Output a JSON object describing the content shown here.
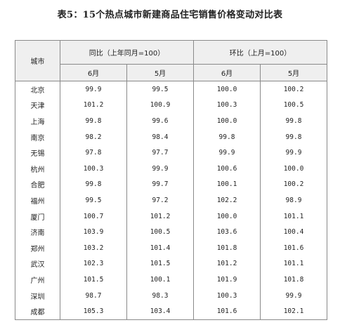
{
  "title": "表5：15个热点城市新建商品住宅销售价格变动对比表",
  "headers": {
    "city": "城市",
    "yoy": "同比（上年同月=100）",
    "mom": "环比（上月=100）",
    "month_a": "6月",
    "month_b": "5月"
  },
  "rows": [
    {
      "city": "北京",
      "yoy6": "99.9",
      "yoy5": "99.5",
      "mom6": "100.0",
      "mom5": "100.2"
    },
    {
      "city": "天津",
      "yoy6": "101.2",
      "yoy5": "100.9",
      "mom6": "100.3",
      "mom5": "100.5"
    },
    {
      "city": "上海",
      "yoy6": "99.8",
      "yoy5": "99.6",
      "mom6": "100.0",
      "mom5": "99.8"
    },
    {
      "city": "南京",
      "yoy6": "98.2",
      "yoy5": "98.4",
      "mom6": "99.8",
      "mom5": "99.8"
    },
    {
      "city": "无锡",
      "yoy6": "97.8",
      "yoy5": "97.7",
      "mom6": "99.9",
      "mom5": "99.9"
    },
    {
      "city": "杭州",
      "yoy6": "100.3",
      "yoy5": "99.9",
      "mom6": "100.6",
      "mom5": "100.0"
    },
    {
      "city": "合肥",
      "yoy6": "99.8",
      "yoy5": "99.7",
      "mom6": "100.1",
      "mom5": "100.2"
    },
    {
      "city": "福州",
      "yoy6": "99.5",
      "yoy5": "97.2",
      "mom6": "102.2",
      "mom5": "98.9"
    },
    {
      "city": "厦门",
      "yoy6": "100.7",
      "yoy5": "101.2",
      "mom6": "100.0",
      "mom5": "101.1"
    },
    {
      "city": "济南",
      "yoy6": "103.9",
      "yoy5": "100.5",
      "mom6": "103.6",
      "mom5": "100.4"
    },
    {
      "city": "郑州",
      "yoy6": "103.2",
      "yoy5": "101.4",
      "mom6": "101.8",
      "mom5": "101.6"
    },
    {
      "city": "武汉",
      "yoy6": "102.3",
      "yoy5": "101.5",
      "mom6": "101.2",
      "mom5": "101.1"
    },
    {
      "city": "广州",
      "yoy6": "101.5",
      "yoy5": "100.1",
      "mom6": "101.9",
      "mom5": "101.8"
    },
    {
      "city": "深圳",
      "yoy6": "98.7",
      "yoy5": "98.3",
      "mom6": "100.3",
      "mom5": "99.9"
    },
    {
      "city": "成都",
      "yoy6": "105.3",
      "yoy5": "103.4",
      "mom6": "101.6",
      "mom5": "102.1"
    }
  ]
}
